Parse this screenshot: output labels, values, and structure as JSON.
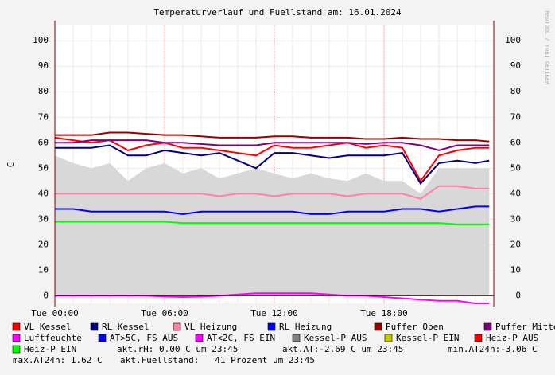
{
  "chart_data": {
    "type": "line",
    "title": "Temperaturverlauf und Fuellstand am: 16.01.2024",
    "y_label": "C",
    "watermark": "RRDTOOL / TOBI OETIKER",
    "x": [
      0,
      1,
      2,
      3,
      4,
      5,
      6,
      7,
      8,
      9,
      10,
      11,
      12,
      13,
      14,
      15,
      16,
      17,
      18,
      19,
      20,
      21,
      22,
      23,
      23.75
    ],
    "xlim": [
      0,
      24
    ],
    "xticks": [
      {
        "value": 0,
        "label": "Tue 00:00"
      },
      {
        "value": 6,
        "label": "Tue 06:00"
      },
      {
        "value": 12,
        "label": "Tue 12:00"
      },
      {
        "value": 18,
        "label": "Tue 18:00"
      }
    ],
    "ylim": [
      -3,
      106
    ],
    "yticks": [
      0,
      10,
      20,
      30,
      40,
      50,
      60,
      70,
      80,
      90,
      100
    ],
    "grid": true,
    "series": [
      {
        "name": "VL Kessel",
        "color": "#ff0000",
        "values": [
          62,
          61,
          60,
          61,
          57,
          59,
          60,
          58,
          58,
          57,
          56,
          55,
          59,
          58,
          58,
          59,
          60,
          58,
          59,
          58,
          45,
          55,
          57,
          58,
          58
        ]
      },
      {
        "name": "RL Kessel",
        "color": "#000080",
        "values": [
          58,
          58,
          58,
          59,
          55,
          55,
          57,
          56,
          55,
          56,
          53,
          50,
          56,
          56,
          55,
          54,
          55,
          55,
          55,
          56,
          44,
          52,
          53,
          52,
          53
        ]
      },
      {
        "name": "VL Heizung",
        "color": "#ff80a0",
        "values": [
          40,
          40,
          40,
          40,
          40,
          40,
          40,
          40,
          40,
          39,
          40,
          40,
          39,
          40,
          40,
          40,
          39,
          40,
          40,
          40,
          38,
          43,
          43,
          42,
          42
        ]
      },
      {
        "name": "RL Heizung",
        "color": "#0000ff",
        "values": [
          34,
          34,
          33,
          33,
          33,
          33,
          33,
          32,
          33,
          33,
          33,
          33,
          33,
          33,
          32,
          32,
          33,
          33,
          33,
          34,
          34,
          33,
          34,
          35,
          35
        ]
      },
      {
        "name": "Puffer Oben",
        "color": "#990000",
        "values": [
          63,
          63,
          63,
          64,
          64,
          63.5,
          63,
          63,
          62.5,
          62,
          62,
          62,
          62.5,
          62.5,
          62,
          62,
          62,
          61.5,
          61.5,
          62,
          61.5,
          61.5,
          61,
          61,
          60.5
        ]
      },
      {
        "name": "Puffer Mitte",
        "color": "#800080",
        "values": [
          60,
          60,
          61,
          61,
          61,
          61,
          60,
          60,
          59.5,
          59,
          59,
          59,
          60,
          60,
          60,
          60,
          60,
          59.5,
          60,
          60,
          59,
          57,
          59,
          59,
          59
        ]
      },
      {
        "name": "Luftfeuchte",
        "color": "#ff00ff",
        "values": [
          0,
          0,
          0,
          0,
          0,
          0,
          -0.3,
          -0.5,
          -0.3,
          0,
          0.5,
          1,
          1,
          1,
          1,
          0.5,
          0,
          0,
          -0.5,
          -1,
          -1.5,
          -2,
          -2,
          -3,
          -3
        ]
      },
      {
        "name": "AT>5C, FS AUS",
        "color": "#0000ff",
        "values": [
          null,
          null,
          null,
          null,
          null,
          null,
          null,
          null,
          null,
          null,
          null,
          null,
          null,
          null,
          null,
          null,
          null,
          null,
          null,
          null,
          null,
          null,
          null,
          null,
          null
        ]
      },
      {
        "name": "AT<2C, FS EIN",
        "color": "#ff00ff",
        "values": [
          null,
          null,
          null,
          null,
          null,
          null,
          null,
          null,
          null,
          null,
          null,
          null,
          null,
          null,
          null,
          null,
          null,
          null,
          null,
          null,
          null,
          null,
          null,
          null,
          null
        ]
      },
      {
        "name": "Kessel-P AUS",
        "color": "#808080",
        "area": true,
        "values": [
          55,
          52,
          50,
          52,
          45,
          50,
          52,
          48,
          50,
          46,
          48,
          50,
          48,
          46,
          48,
          46,
          45,
          48,
          45,
          45,
          40,
          50,
          50,
          50,
          50
        ]
      },
      {
        "name": "Kessel-P EIN",
        "color": "#cccc00",
        "values": [
          null,
          null,
          null,
          null,
          null,
          null,
          null,
          null,
          null,
          null,
          null,
          null,
          null,
          null,
          null,
          null,
          null,
          null,
          null,
          null,
          null,
          null,
          null,
          null,
          null
        ]
      },
      {
        "name": "Heiz-P AUS",
        "color": "#ff0000",
        "values": [
          null,
          null,
          null,
          null,
          null,
          null,
          null,
          null,
          null,
          null,
          null,
          null,
          null,
          null,
          null,
          null,
          null,
          null,
          null,
          null,
          null,
          null,
          null,
          null,
          null
        ]
      },
      {
        "name": "Heiz-P EIN",
        "color": "#00ff00",
        "values": [
          29,
          29,
          29,
          29,
          29,
          29,
          29,
          28.5,
          28.5,
          28.5,
          28.5,
          28.5,
          28.5,
          28.5,
          28.5,
          28.5,
          28.5,
          28.5,
          28.5,
          28.5,
          28.5,
          28.5,
          28,
          28,
          28
        ]
      }
    ],
    "notes": [
      "akt.rH: 0.00 C um 23:45",
      "akt.AT:-2.69 C um 23:45",
      "min.AT24h:-3.06 C",
      "max.AT24h: 1.62 C",
      "akt.Fuellstand:   41 Prozent um 23:45"
    ]
  }
}
